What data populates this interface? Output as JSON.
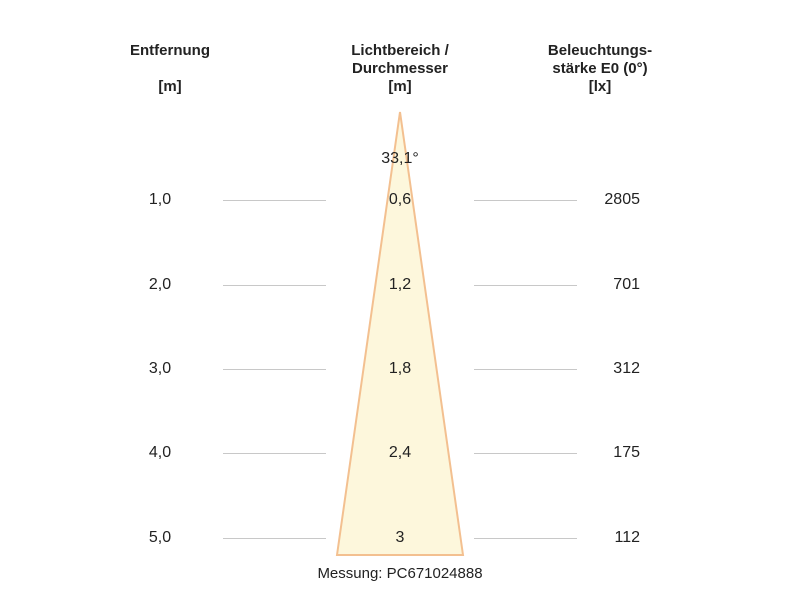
{
  "headers": {
    "distance": {
      "line1": "Entfernung",
      "unit": "[m]"
    },
    "diameter": {
      "line1": "Lichtbereich /",
      "line2": "Durchmesser",
      "unit": "[m]"
    },
    "illuminance": {
      "line1": "Beleuchtungs-",
      "line2": "stärke E0 (0°)",
      "unit": "[lx]"
    }
  },
  "beam": {
    "angle": "33,1°",
    "fill_color": "#fdf7dc",
    "edge_color": "#f3c090"
  },
  "rows": [
    {
      "distance": "1,0",
      "diameter": "0,6",
      "illuminance": "2805"
    },
    {
      "distance": "2,0",
      "diameter": "1,2",
      "illuminance": "701"
    },
    {
      "distance": "3,0",
      "diameter": "1,8",
      "illuminance": "312"
    },
    {
      "distance": "4,0",
      "diameter": "2,4",
      "illuminance": "175"
    },
    {
      "distance": "5,0",
      "diameter": "3",
      "illuminance": "112"
    }
  ],
  "footer": "Messung: PC671024888"
}
